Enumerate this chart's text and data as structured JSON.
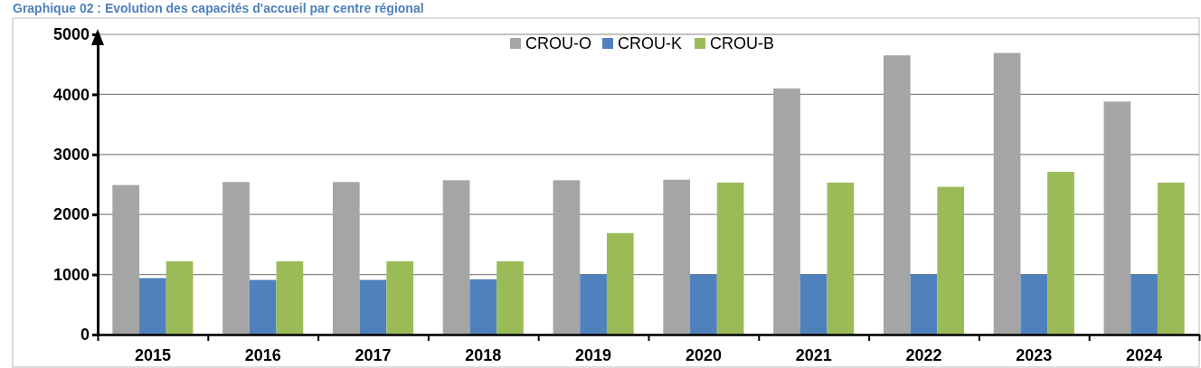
{
  "chart_data": {
    "type": "bar",
    "title": "Graphique 02 : Evolution des capacités d'accueil par centre régional",
    "categories": [
      "2015",
      "2016",
      "2017",
      "2018",
      "2019",
      "2020",
      "2021",
      "2022",
      "2023",
      "2024"
    ],
    "series": [
      {
        "name": "CROU-O",
        "color": "#a5a5a5",
        "values": [
          2490,
          2540,
          2540,
          2570,
          2570,
          2580,
          4100,
          4650,
          4690,
          3880
        ]
      },
      {
        "name": "CROU-K",
        "color": "#4f81bd",
        "values": [
          940,
          910,
          910,
          920,
          1000,
          1000,
          1000,
          1000,
          1000,
          1000
        ]
      },
      {
        "name": "CROU-B",
        "color": "#9bbb59",
        "values": [
          1220,
          1220,
          1220,
          1220,
          1690,
          2530,
          2530,
          2460,
          2710,
          2530
        ]
      }
    ],
    "ylim": [
      0,
      5000
    ],
    "yticks": [
      0,
      1000,
      2000,
      3000,
      4000,
      5000
    ],
    "grid": "y",
    "legend": "top"
  }
}
